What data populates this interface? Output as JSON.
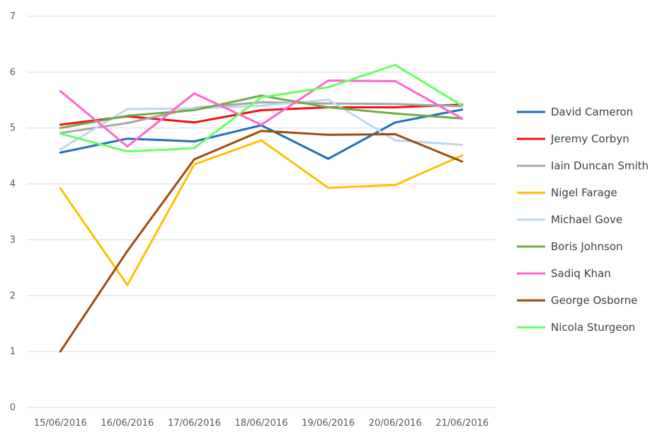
{
  "chart_data": {
    "type": "line",
    "title": "",
    "xlabel": "",
    "ylabel": "",
    "ylim": [
      0,
      7
    ],
    "yticks": [
      "0",
      "1",
      "2",
      "3",
      "4",
      "5",
      "6",
      "7"
    ],
    "grid": true,
    "legend_position": "right",
    "categories": [
      "15/06/2016",
      "16/06/2016",
      "17/06/2016",
      "18/06/2016",
      "19/06/2016",
      "20/06/2016",
      "21/06/2016"
    ],
    "series": [
      {
        "name": "David Cameron",
        "color": "#1f6fb8",
        "values": [
          4.56,
          4.81,
          4.76,
          5.05,
          4.45,
          5.1,
          5.33
        ]
      },
      {
        "name": "Jeremy Corbyn",
        "color": "#ee1111",
        "values": [
          5.06,
          5.21,
          5.1,
          5.32,
          5.37,
          5.37,
          5.42
        ]
      },
      {
        "name": "Iain Duncan Smith",
        "color": "#a6a6a6",
        "values": [
          4.91,
          5.09,
          5.36,
          5.46,
          5.44,
          5.43,
          5.39
        ]
      },
      {
        "name": "Nigel Farage",
        "color": "#ffc000",
        "values": [
          3.92,
          2.19,
          4.35,
          4.78,
          3.93,
          3.98,
          4.51
        ]
      },
      {
        "name": "Michael Gove",
        "color": "#bdd7ee",
        "values": [
          4.62,
          5.34,
          5.35,
          5.4,
          5.51,
          4.78,
          4.7
        ]
      },
      {
        "name": "Boris Johnson",
        "color": "#70ad47",
        "values": [
          5.0,
          5.22,
          5.32,
          5.58,
          5.37,
          5.26,
          5.17
        ]
      },
      {
        "name": "Sadiq Khan",
        "color": "#ff66cc",
        "values": [
          5.66,
          4.67,
          5.62,
          5.06,
          5.85,
          5.84,
          5.17
        ]
      },
      {
        "name": "George Osborne",
        "color": "#9e4a0e",
        "values": [
          1.0,
          2.8,
          4.44,
          4.95,
          4.88,
          4.89,
          4.4
        ]
      },
      {
        "name": "Nicola Sturgeon",
        "color": "#66ff66",
        "values": [
          4.9,
          4.58,
          4.64,
          5.55,
          5.73,
          6.13,
          5.4
        ]
      }
    ]
  }
}
